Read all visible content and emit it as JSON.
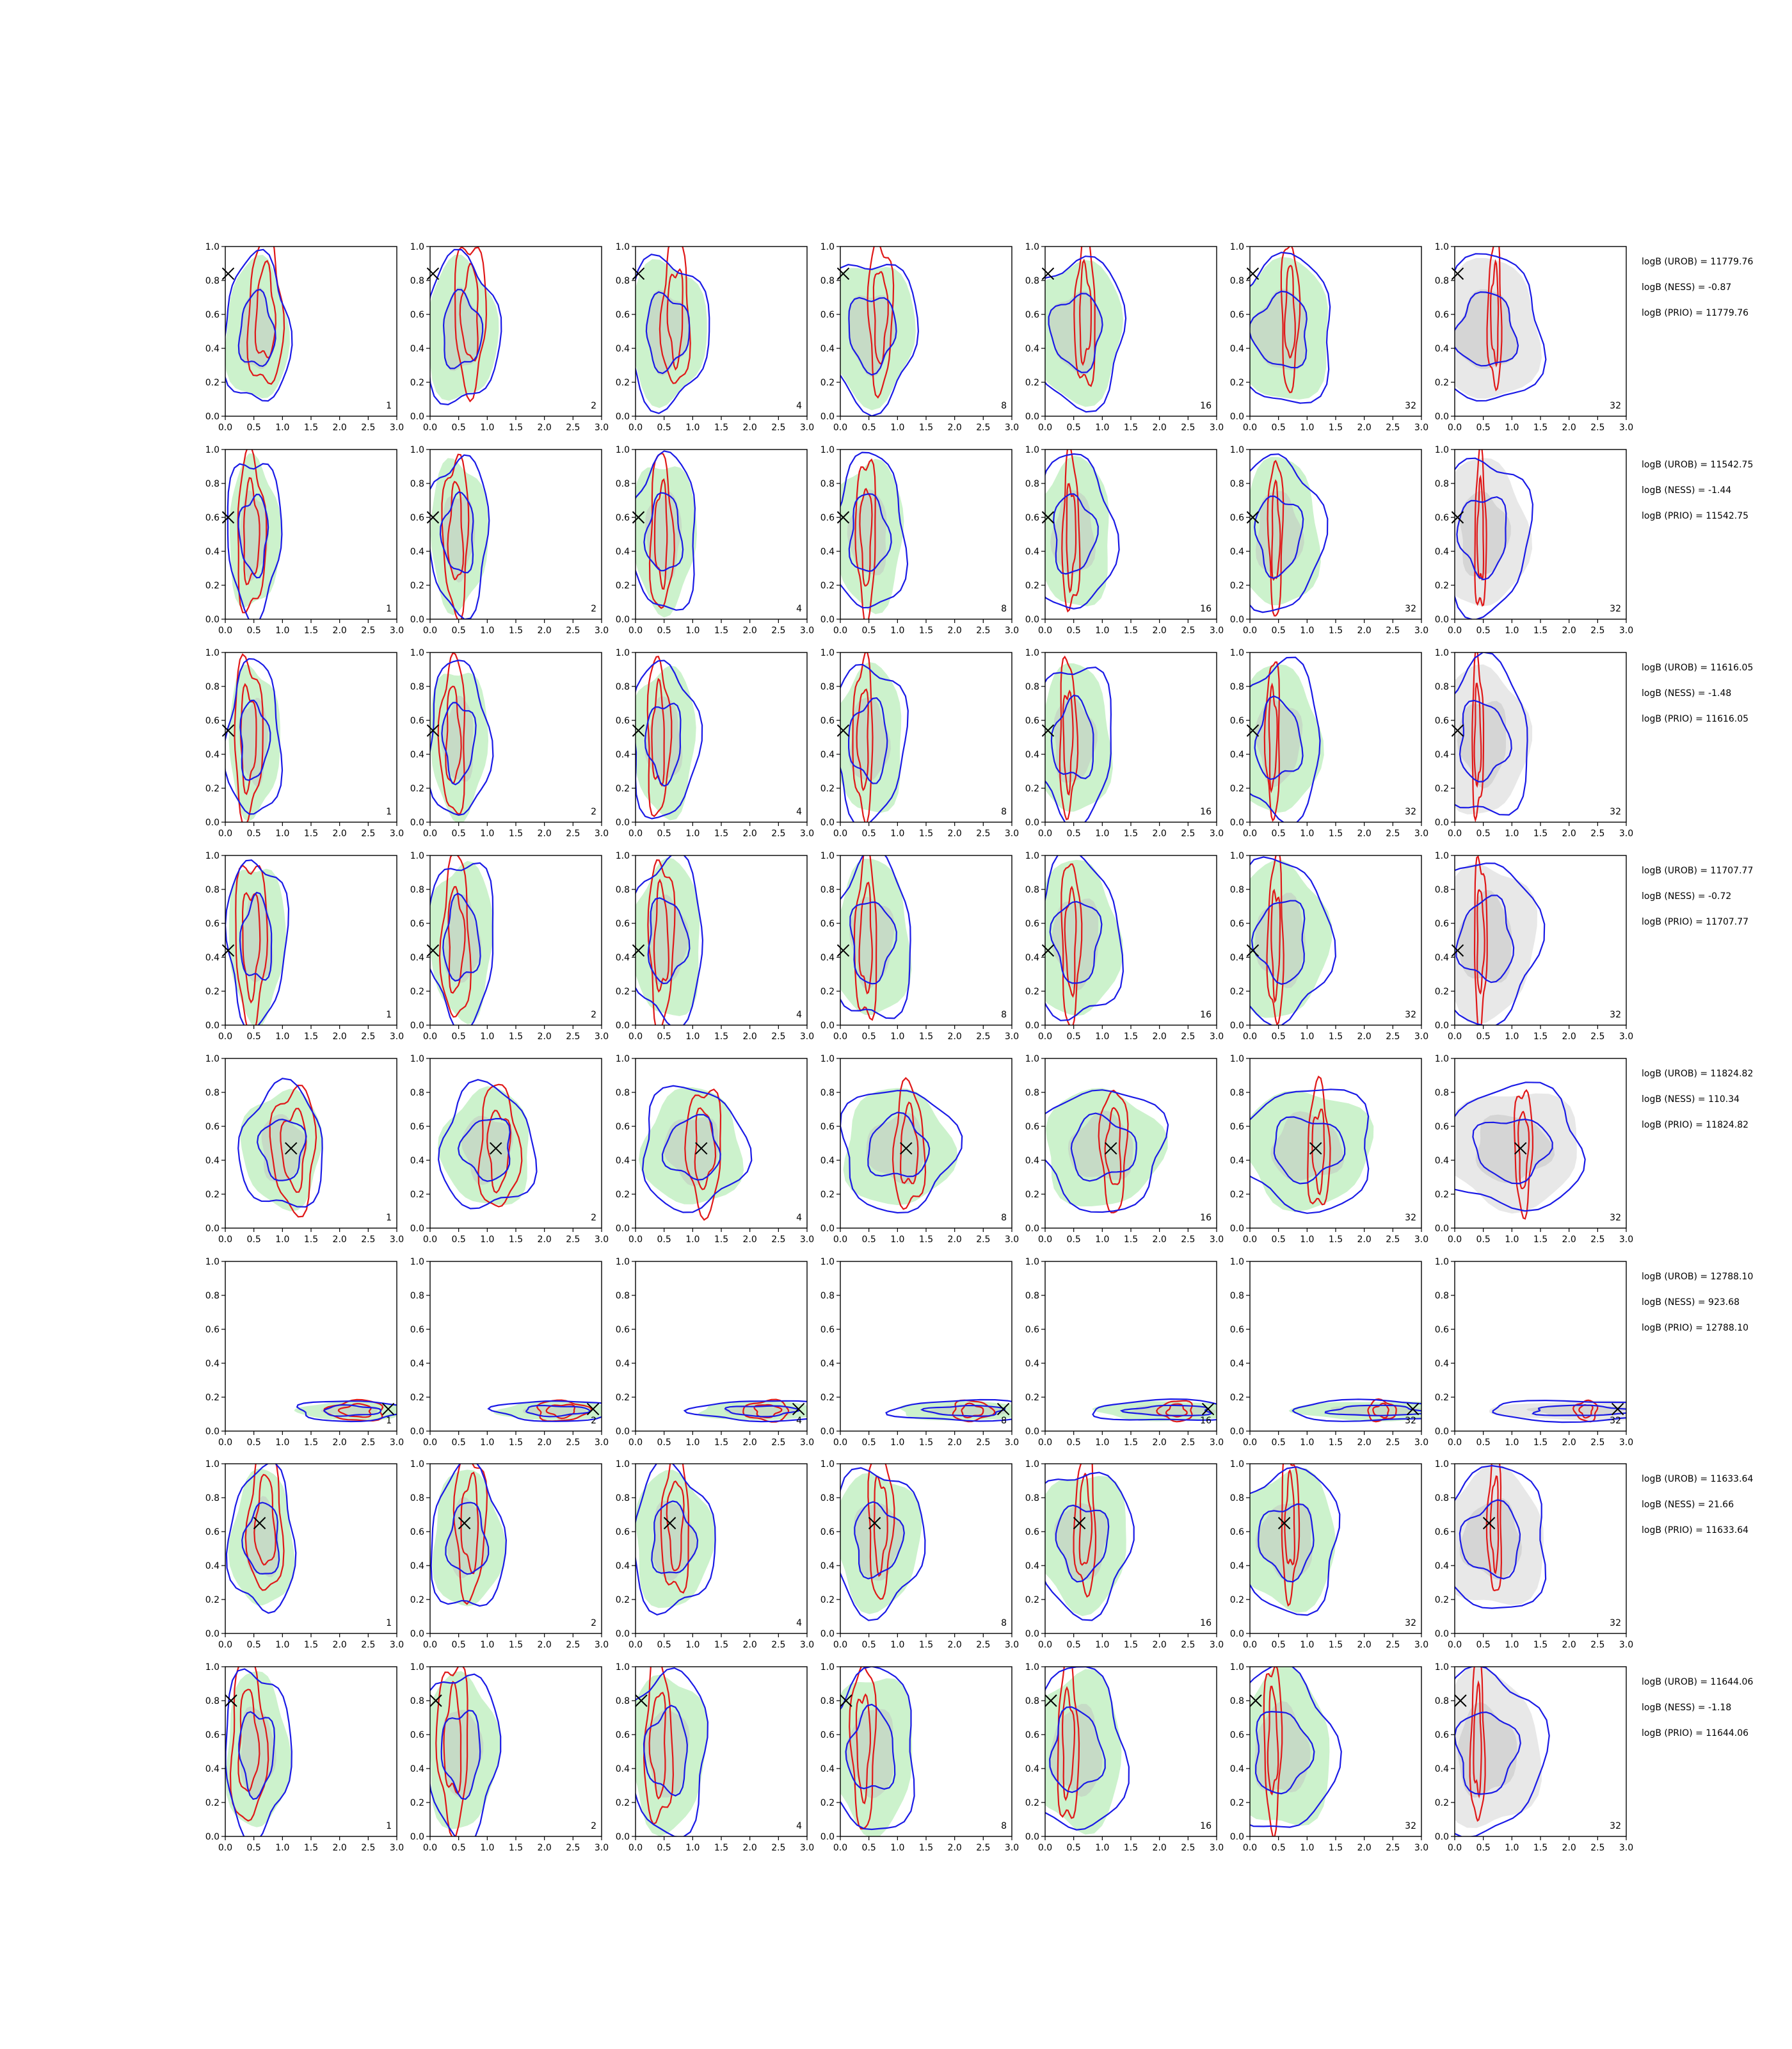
{
  "chart_data": {
    "type": "contour-grid",
    "rows": 8,
    "columns": 7,
    "xlim": [
      0.0,
      3.0
    ],
    "ylim": [
      0.0,
      1.0
    ],
    "xticks": [
      "0.0",
      "0.5",
      "1.0",
      "1.5",
      "2.0",
      "2.5",
      "3.0"
    ],
    "yticks": [
      "0.0",
      "0.2",
      "0.4",
      "0.6",
      "0.8",
      "1.0"
    ],
    "panel_labels": [
      "1",
      "2",
      "4",
      "8",
      "16",
      "32",
      "32"
    ],
    "colors": {
      "green_fill": "#ccf2cc",
      "grey_fill": "#bfbfbf",
      "light_grey_fill": "#e8e8e8",
      "red_line": "#e01818",
      "blue_line": "#1a1ae6",
      "marker": "#000000"
    },
    "grid": false,
    "panels": [
      {
        "row": 0,
        "truth": [
          0.05,
          0.84
        ],
        "cx": 0.55,
        "cy": 0.5,
        "sx": 0.55,
        "sy": 0.36,
        "redcx": 0.7,
        "redcy": 0.6,
        "stats": {
          "urob": "logB (UROB) = 11779.76",
          "ness": "logB (NESS) = -0.87",
          "prio": "logB (PRIO) = 11779.76"
        }
      },
      {
        "row": 1,
        "truth": [
          0.05,
          0.6
        ],
        "cx": 0.5,
        "cy": 0.5,
        "sx": 0.45,
        "sy": 0.38,
        "redcx": 0.45,
        "redcy": 0.5,
        "stats": {
          "urob": "logB (UROB) = 11542.75",
          "ness": "logB (NESS) = -1.44",
          "prio": "logB (PRIO) = 11542.75"
        }
      },
      {
        "row": 2,
        "truth": [
          0.05,
          0.54
        ],
        "cx": 0.5,
        "cy": 0.48,
        "sx": 0.45,
        "sy": 0.38,
        "redcx": 0.4,
        "redcy": 0.5,
        "stats": {
          "urob": "logB (UROB) = 11616.05",
          "ness": "logB (NESS) = -1.48",
          "prio": "logB (PRIO) = 11616.05"
        }
      },
      {
        "row": 3,
        "truth": [
          0.05,
          0.44
        ],
        "cx": 0.55,
        "cy": 0.5,
        "sx": 0.5,
        "sy": 0.4,
        "redcx": 0.45,
        "redcy": 0.5,
        "stats": {
          "urob": "logB (UROB) = 11707.77",
          "ness": "logB (NESS) = -0.72",
          "prio": "logB (PRIO) = 11707.77"
        }
      },
      {
        "row": 4,
        "truth": [
          1.15,
          0.47
        ],
        "cx": 1.0,
        "cy": 0.47,
        "sx": 0.7,
        "sy": 0.3,
        "redcx": 1.2,
        "redcy": 0.47,
        "stats": {
          "urob": "logB (UROB) = 11824.82",
          "ness": "logB (NESS) = 110.34",
          "prio": "logB (PRIO) = 11824.82"
        }
      },
      {
        "row": 5,
        "truth": [
          2.85,
          0.13
        ],
        "cx": 2.2,
        "cy": 0.12,
        "sx": 0.9,
        "sy": 0.05,
        "redcx": 2.3,
        "redcy": 0.12,
        "stats": {
          "urob": "logB (UROB) = 12788.10",
          "ness": "logB (NESS) = 923.68",
          "prio": "logB (PRIO) = 12788.10"
        }
      },
      {
        "row": 6,
        "truth": [
          0.6,
          0.65
        ],
        "cx": 0.65,
        "cy": 0.55,
        "sx": 0.55,
        "sy": 0.35,
        "redcx": 0.7,
        "redcy": 0.65,
        "stats": {
          "urob": "logB (UROB) = 11633.64",
          "ness": "logB (NESS) = 21.66",
          "prio": "logB (PRIO) = 11633.64"
        }
      },
      {
        "row": 7,
        "truth": [
          0.1,
          0.8
        ],
        "cx": 0.55,
        "cy": 0.5,
        "sx": 0.55,
        "sy": 0.4,
        "redcx": 0.4,
        "redcy": 0.55,
        "stats": {
          "urob": "logB (UROB) = 11644.06",
          "ness": "logB (NESS) = -1.18",
          "prio": "logB (PRIO) = 11644.06"
        }
      }
    ]
  }
}
